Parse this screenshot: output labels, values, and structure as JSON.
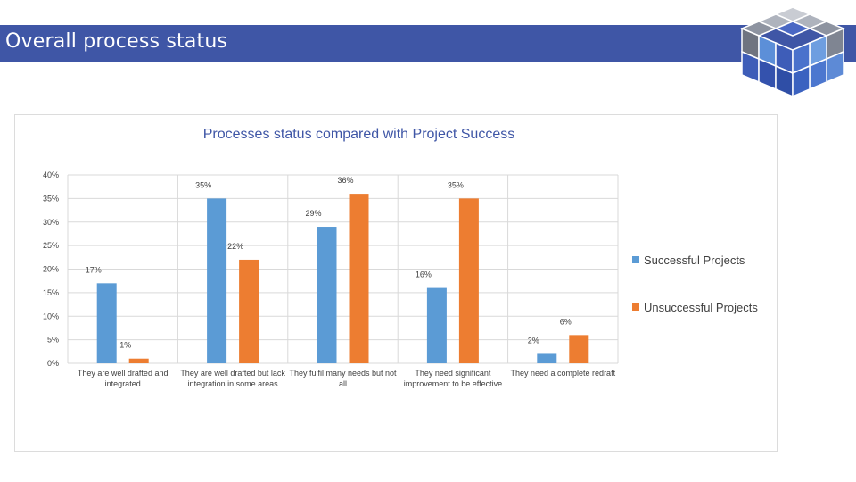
{
  "slide": {
    "title": "Overall process status",
    "accent_color": "#3F56A6"
  },
  "logo": {
    "icon": "cube-grid-icon"
  },
  "chart_data": {
    "type": "bar",
    "title": "Processes status compared with Project Success",
    "categories": [
      [
        "They are well drafted and",
        "integrated"
      ],
      [
        "They are well drafted but lack",
        "integration in some areas"
      ],
      [
        "They fulfil many needs but not",
        "all"
      ],
      [
        "They need significant",
        "improvement to be effective"
      ],
      [
        "They need a complete redraft"
      ]
    ],
    "series": [
      {
        "name": "Successful Projects",
        "color": "#5B9BD5",
        "values": [
          17,
          35,
          29,
          16,
          2
        ],
        "labels": [
          "17%",
          "35%",
          "29%",
          "16%",
          "2%"
        ]
      },
      {
        "name": "Unsuccessful Projects",
        "color": "#ED7D31",
        "values": [
          1,
          22,
          36,
          35,
          6
        ],
        "labels": [
          "1%",
          "22%",
          "36%",
          "35%",
          "6%"
        ]
      }
    ],
    "y_ticks": [
      0,
      5,
      10,
      15,
      20,
      25,
      30,
      35,
      40
    ],
    "y_tick_labels": [
      "0%",
      "5%",
      "10%",
      "15%",
      "20%",
      "25%",
      "30%",
      "35%",
      "40%"
    ],
    "ylim": [
      0,
      40
    ],
    "xlabel": "",
    "ylabel": "",
    "grid": true,
    "legend_position": "right"
  }
}
